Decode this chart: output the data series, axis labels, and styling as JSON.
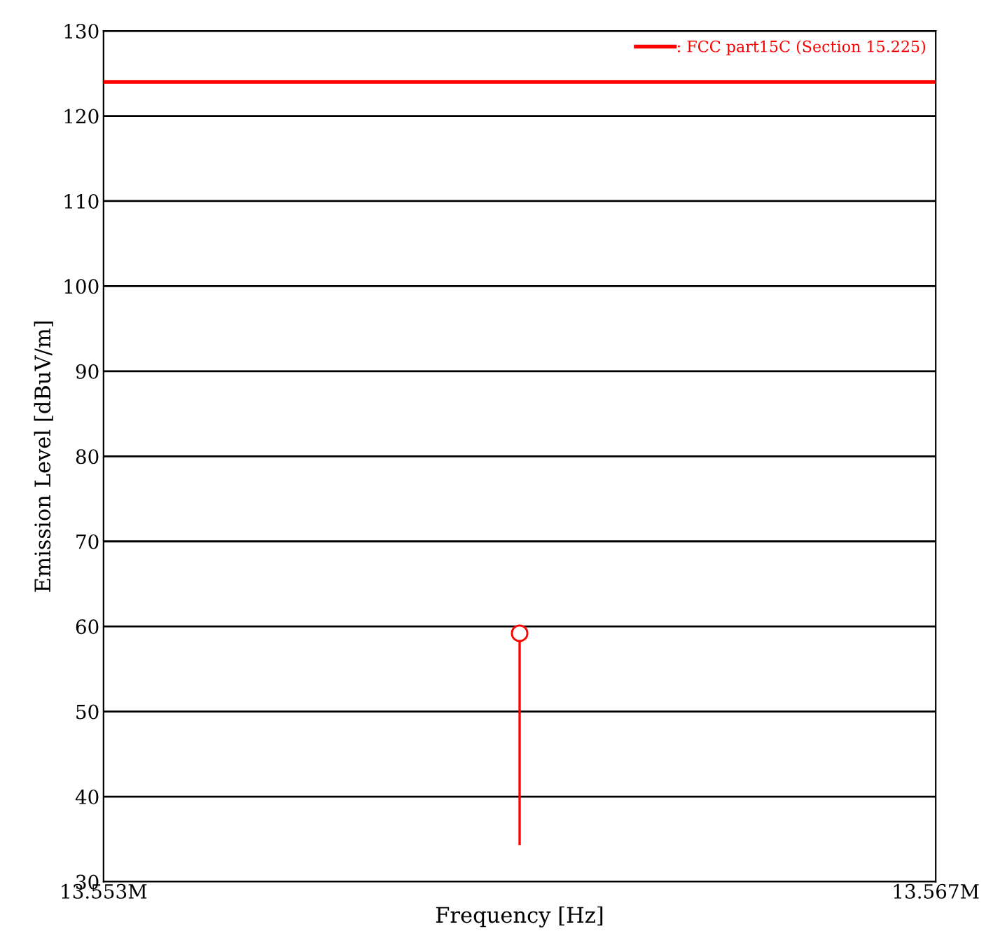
{
  "chart_data": {
    "type": "scatter",
    "xlabel": "Frequency [Hz]",
    "ylabel": "Emission Level [dBuV/m]",
    "xlim": [
      13553000,
      13567000
    ],
    "xticks": [
      {
        "value": 13553000,
        "label": "13.553M"
      },
      {
        "value": 13567000,
        "label": "13.567M"
      }
    ],
    "ylim": [
      30,
      130
    ],
    "yticks": [
      30,
      40,
      50,
      60,
      70,
      80,
      90,
      100,
      110,
      120,
      130
    ],
    "grid": "y",
    "legend": "top right",
    "series": [
      {
        "color": "#ff0000",
        "x": [
          13560000
        ],
        "values": [
          59.2
        ],
        "errors": [
          [
            34.3,
            59.2
          ]
        ],
        "marker": "circle"
      },
      {
        "type": "line",
        "name": ": FCC part15C (Section 15.225)",
        "color": "#ff0000",
        "x": [
          13553000,
          13567000
        ],
        "values": [
          124,
          124
        ]
      }
    ]
  }
}
